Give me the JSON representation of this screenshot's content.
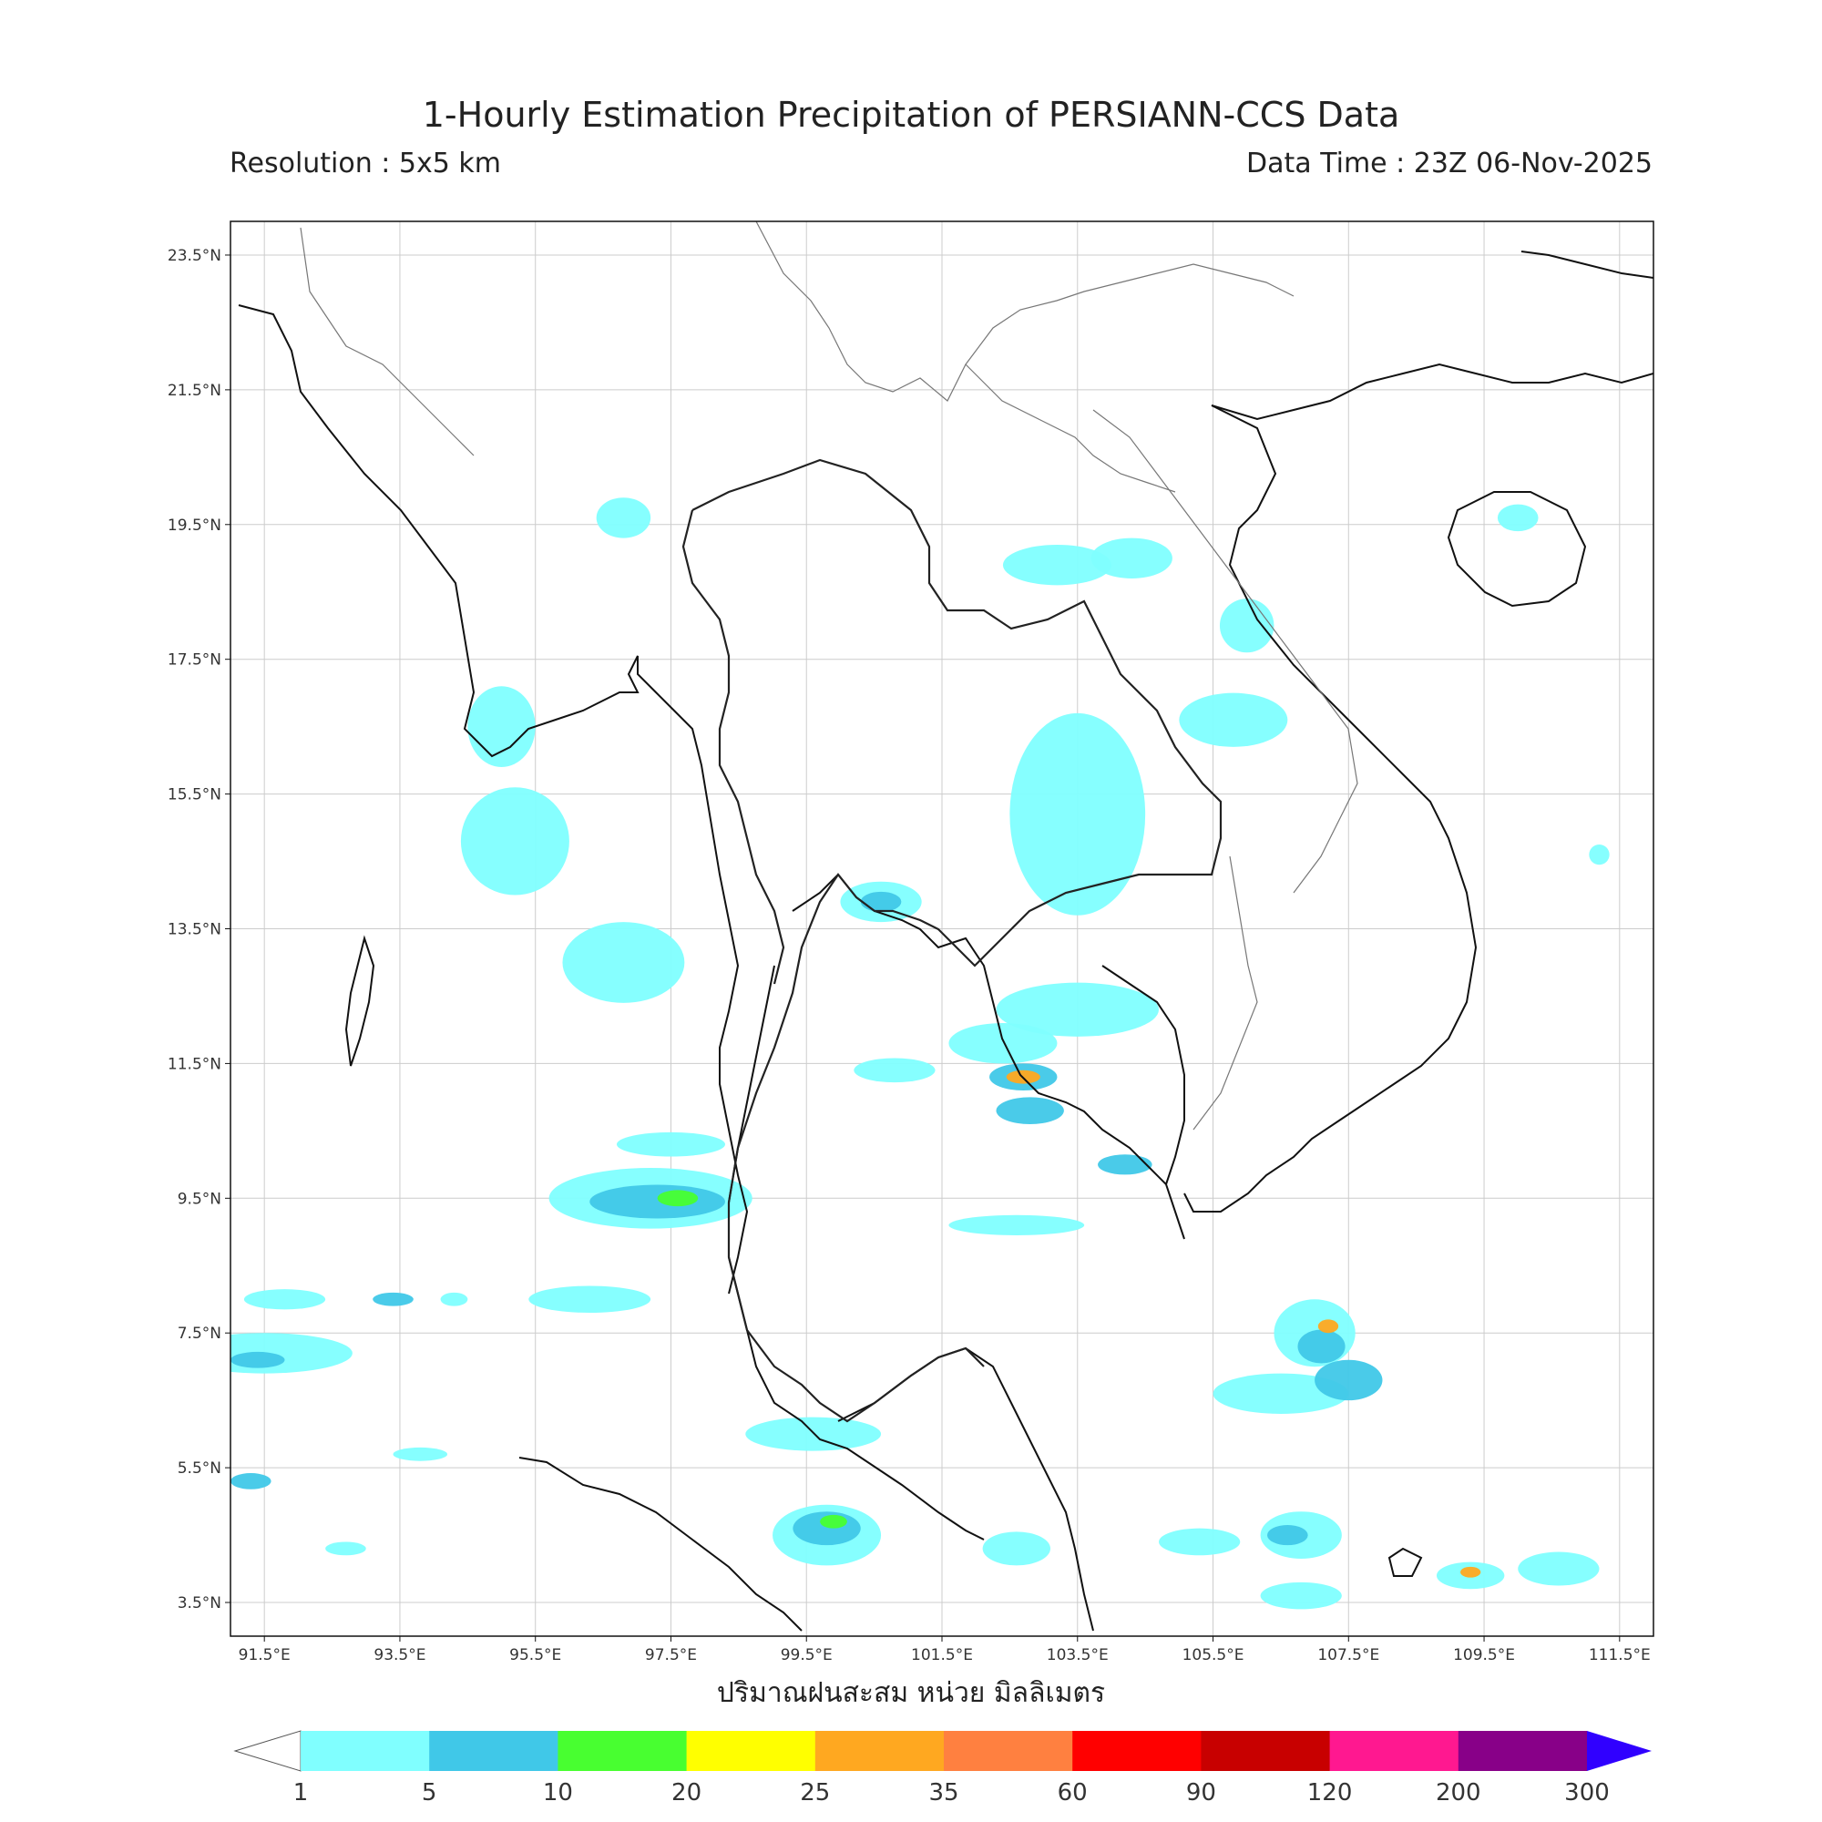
{
  "title": "1-Hourly Estimation Precipitation of PERSIANN-CCS Data",
  "resolution": "Resolution : 5x5 km",
  "data_time": "Data Time : 23Z 06-Nov-2025",
  "xlabel": "ปริมาณฝนสะสม หน่วย มิลลิเมตร",
  "map": {
    "lat_ticks": [
      "23.5°N",
      "21.5°N",
      "19.5°N",
      "17.5°N",
      "15.5°N",
      "13.5°N",
      "11.5°N",
      "9.5°N",
      "7.5°N",
      "5.5°N",
      "3.5°N"
    ],
    "lon_ticks": [
      "91.5°E",
      "93.5°E",
      "95.5°E",
      "97.5°E",
      "99.5°E",
      "101.5°E",
      "103.5°E",
      "105.5°E",
      "107.5°E",
      "109.5°E",
      "111.5°E"
    ],
    "lat_range": [
      3.0,
      24.0
    ],
    "lon_range": [
      91.0,
      112.0
    ],
    "grid": true
  },
  "colorbar": {
    "labels": [
      "1",
      "5",
      "10",
      "20",
      "25",
      "35",
      "60",
      "90",
      "120",
      "200",
      "300"
    ],
    "colors": [
      "#80ffff",
      "#40c8e8",
      "#48ff30",
      "#ffff00",
      "#ffa820",
      "#ff8040",
      "#ff0000",
      "#c80000",
      "#ff1890",
      "#880088"
    ],
    "over_color": "#3000ff",
    "under_color": "#ffffff"
  },
  "rain_cells": [
    {
      "lon": 91.5,
      "lat": 7.2,
      "rx": 1.3,
      "ry": 0.3,
      "level": 1
    },
    {
      "lon": 91.4,
      "lat": 7.1,
      "rx": 0.4,
      "ry": 0.12,
      "level": 2
    },
    {
      "lon": 91.8,
      "lat": 8.0,
      "rx": 0.6,
      "ry": 0.15,
      "level": 1
    },
    {
      "lon": 93.8,
      "lat": 5.7,
      "rx": 0.4,
      "ry": 0.1,
      "level": 1
    },
    {
      "lon": 91.3,
      "lat": 5.3,
      "rx": 0.3,
      "ry": 0.12,
      "level": 2
    },
    {
      "lon": 96.3,
      "lat": 8.0,
      "rx": 0.9,
      "ry": 0.2,
      "level": 1
    },
    {
      "lon": 97.5,
      "lat": 10.3,
      "rx": 0.8,
      "ry": 0.18,
      "level": 1
    },
    {
      "lon": 97.2,
      "lat": 9.5,
      "rx": 1.5,
      "ry": 0.45,
      "level": 1
    },
    {
      "lon": 97.3,
      "lat": 9.45,
      "rx": 1.0,
      "ry": 0.25,
      "level": 2
    },
    {
      "lon": 97.6,
      "lat": 9.5,
      "rx": 0.3,
      "ry": 0.12,
      "level": 3
    },
    {
      "lon": 96.8,
      "lat": 13.0,
      "rx": 0.9,
      "ry": 0.6,
      "level": 1
    },
    {
      "lon": 95.2,
      "lat": 14.8,
      "rx": 0.8,
      "ry": 0.8,
      "level": 1
    },
    {
      "lon": 95.0,
      "lat": 16.5,
      "rx": 0.5,
      "ry": 0.6,
      "level": 1
    },
    {
      "lon": 96.8,
      "lat": 19.6,
      "rx": 0.4,
      "ry": 0.3,
      "level": 1
    },
    {
      "lon": 99.8,
      "lat": 4.5,
      "rx": 0.8,
      "ry": 0.45,
      "level": 1
    },
    {
      "lon": 99.8,
      "lat": 4.6,
      "rx": 0.5,
      "ry": 0.25,
      "level": 2
    },
    {
      "lon": 99.9,
      "lat": 4.7,
      "rx": 0.2,
      "ry": 0.1,
      "level": 3
    },
    {
      "lon": 99.6,
      "lat": 6.0,
      "rx": 1.0,
      "ry": 0.25,
      "level": 1
    },
    {
      "lon": 100.6,
      "lat": 13.9,
      "rx": 0.6,
      "ry": 0.3,
      "level": 1
    },
    {
      "lon": 100.6,
      "lat": 13.9,
      "rx": 0.3,
      "ry": 0.15,
      "level": 2
    },
    {
      "lon": 103.5,
      "lat": 15.2,
      "rx": 1.0,
      "ry": 1.5,
      "level": 1
    },
    {
      "lon": 103.2,
      "lat": 18.9,
      "rx": 0.8,
      "ry": 0.3,
      "level": 1
    },
    {
      "lon": 104.3,
      "lat": 19.0,
      "rx": 0.6,
      "ry": 0.3,
      "level": 1
    },
    {
      "lon": 102.4,
      "lat": 11.8,
      "rx": 0.8,
      "ry": 0.3,
      "level": 1
    },
    {
      "lon": 102.7,
      "lat": 11.3,
      "rx": 0.5,
      "ry": 0.2,
      "level": 2
    },
    {
      "lon": 102.7,
      "lat": 11.3,
      "rx": 0.25,
      "ry": 0.1,
      "level": 5
    },
    {
      "lon": 103.5,
      "lat": 12.3,
      "rx": 1.2,
      "ry": 0.4,
      "level": 1
    },
    {
      "lon": 102.8,
      "lat": 10.8,
      "rx": 0.5,
      "ry": 0.2,
      "level": 2
    },
    {
      "lon": 100.8,
      "lat": 11.4,
      "rx": 0.6,
      "ry": 0.18,
      "level": 1
    },
    {
      "lon": 102.6,
      "lat": 9.1,
      "rx": 1.0,
      "ry": 0.15,
      "level": 1
    },
    {
      "lon": 107.0,
      "lat": 7.5,
      "rx": 0.6,
      "ry": 0.5,
      "level": 1
    },
    {
      "lon": 107.1,
      "lat": 7.3,
      "rx": 0.35,
      "ry": 0.25,
      "level": 2
    },
    {
      "lon": 107.2,
      "lat": 7.6,
      "rx": 0.15,
      "ry": 0.1,
      "level": 5
    },
    {
      "lon": 106.5,
      "lat": 6.6,
      "rx": 1.0,
      "ry": 0.3,
      "level": 1
    },
    {
      "lon": 107.5,
      "lat": 6.8,
      "rx": 0.5,
      "ry": 0.3,
      "level": 2
    },
    {
      "lon": 106.8,
      "lat": 4.5,
      "rx": 0.6,
      "ry": 0.35,
      "level": 1
    },
    {
      "lon": 106.6,
      "lat": 4.5,
      "rx": 0.3,
      "ry": 0.15,
      "level": 2
    },
    {
      "lon": 106.8,
      "lat": 3.6,
      "rx": 0.6,
      "ry": 0.2,
      "level": 1
    },
    {
      "lon": 109.3,
      "lat": 3.9,
      "rx": 0.5,
      "ry": 0.2,
      "level": 1
    },
    {
      "lon": 109.3,
      "lat": 3.95,
      "rx": 0.15,
      "ry": 0.08,
      "level": 5
    },
    {
      "lon": 110.6,
      "lat": 4.0,
      "rx": 0.6,
      "ry": 0.25,
      "level": 1
    },
    {
      "lon": 105.3,
      "lat": 4.4,
      "rx": 0.6,
      "ry": 0.2,
      "level": 1
    },
    {
      "lon": 102.6,
      "lat": 4.3,
      "rx": 0.5,
      "ry": 0.25,
      "level": 1
    },
    {
      "lon": 105.8,
      "lat": 16.6,
      "rx": 0.8,
      "ry": 0.4,
      "level": 1
    },
    {
      "lon": 106.0,
      "lat": 18.0,
      "rx": 0.4,
      "ry": 0.4,
      "level": 1
    },
    {
      "lon": 104.2,
      "lat": 10.0,
      "rx": 0.4,
      "ry": 0.15,
      "level": 2
    },
    {
      "lon": 110.0,
      "lat": 19.6,
      "rx": 0.3,
      "ry": 0.2,
      "level": 1
    },
    {
      "lon": 111.2,
      "lat": 14.6,
      "rx": 0.15,
      "ry": 0.15,
      "level": 1
    },
    {
      "lon": 92.7,
      "lat": 4.3,
      "rx": 0.3,
      "ry": 0.1,
      "level": 1
    },
    {
      "lon": 94.3,
      "lat": 8.0,
      "rx": 0.2,
      "ry": 0.1,
      "level": 1
    },
    {
      "lon": 93.4,
      "lat": 8.0,
      "rx": 0.3,
      "ry": 0.1,
      "level": 2
    }
  ]
}
